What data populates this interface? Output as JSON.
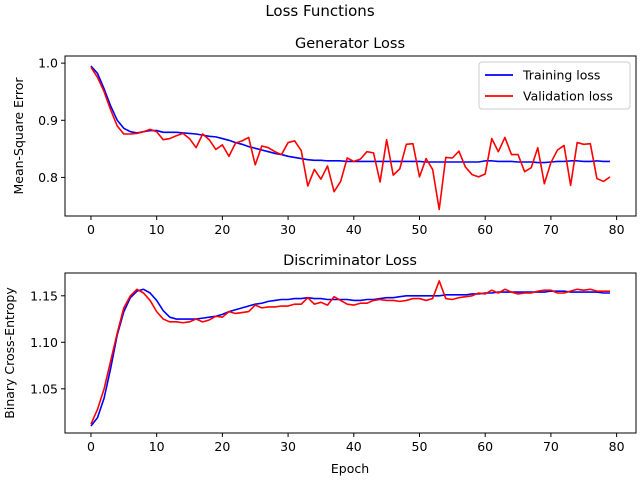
{
  "figure": {
    "suptitle": "Loss Functions"
  },
  "colors": {
    "training": "#0000ff",
    "validation": "#ff0000"
  },
  "chart_data": [
    {
      "type": "line",
      "title": "Generator Loss",
      "xlabel": "",
      "ylabel": "Mean-Square Error",
      "xlim": [
        -3.95,
        82.95
      ],
      "ylim": [
        0.7325,
        1.0125
      ],
      "xticks": [
        0,
        10,
        20,
        30,
        40,
        50,
        60,
        70,
        80
      ],
      "yticks": [
        0.8,
        0.9,
        1.0
      ],
      "ytick_labels": [
        "0.8",
        "0.9",
        "1.0"
      ],
      "legend": "top-right",
      "x": [
        0,
        1,
        2,
        3,
        4,
        5,
        6,
        7,
        8,
        9,
        10,
        11,
        12,
        13,
        14,
        15,
        16,
        17,
        18,
        19,
        20,
        21,
        22,
        23,
        24,
        25,
        26,
        27,
        28,
        29,
        30,
        31,
        32,
        33,
        34,
        35,
        36,
        37,
        38,
        39,
        40,
        41,
        42,
        43,
        44,
        45,
        46,
        47,
        48,
        49,
        50,
        51,
        52,
        53,
        54,
        55,
        56,
        57,
        58,
        59,
        60,
        61,
        62,
        63,
        64,
        65,
        66,
        67,
        68,
        69,
        70,
        71,
        72,
        73,
        74,
        75,
        76,
        77,
        78,
        79
      ],
      "series": [
        {
          "name": "Training loss",
          "color": "#0000ff",
          "values": [
            0.995,
            0.982,
            0.955,
            0.925,
            0.9,
            0.886,
            0.88,
            0.878,
            0.88,
            0.882,
            0.882,
            0.879,
            0.879,
            0.879,
            0.878,
            0.877,
            0.876,
            0.874,
            0.872,
            0.871,
            0.868,
            0.865,
            0.861,
            0.858,
            0.854,
            0.851,
            0.848,
            0.845,
            0.842,
            0.84,
            0.837,
            0.835,
            0.833,
            0.831,
            0.83,
            0.83,
            0.829,
            0.829,
            0.829,
            0.828,
            0.828,
            0.828,
            0.828,
            0.828,
            0.828,
            0.828,
            0.828,
            0.828,
            0.828,
            0.828,
            0.828,
            0.827,
            0.827,
            0.827,
            0.827,
            0.827,
            0.827,
            0.827,
            0.827,
            0.827,
            0.829,
            0.829,
            0.828,
            0.828,
            0.828,
            0.827,
            0.827,
            0.827,
            0.826,
            0.826,
            0.827,
            0.828,
            0.828,
            0.829,
            0.829,
            0.828,
            0.828,
            0.829,
            0.828,
            0.828
          ]
        },
        {
          "name": "Validation loss",
          "color": "#ff0000",
          "values": [
            0.993,
            0.975,
            0.95,
            0.918,
            0.89,
            0.876,
            0.876,
            0.877,
            0.88,
            0.884,
            0.88,
            0.866,
            0.868,
            0.873,
            0.877,
            0.868,
            0.852,
            0.876,
            0.866,
            0.849,
            0.857,
            0.837,
            0.86,
            0.864,
            0.87,
            0.822,
            0.855,
            0.852,
            0.845,
            0.84,
            0.861,
            0.864,
            0.847,
            0.785,
            0.814,
            0.797,
            0.82,
            0.775,
            0.793,
            0.834,
            0.828,
            0.832,
            0.845,
            0.843,
            0.792,
            0.866,
            0.804,
            0.815,
            0.858,
            0.859,
            0.801,
            0.833,
            0.814,
            0.744,
            0.835,
            0.834,
            0.846,
            0.818,
            0.805,
            0.801,
            0.806,
            0.868,
            0.845,
            0.87,
            0.84,
            0.84,
            0.81,
            0.817,
            0.852,
            0.789,
            0.826,
            0.848,
            0.856,
            0.786,
            0.861,
            0.858,
            0.859,
            0.798,
            0.793,
            0.801
          ]
        }
      ]
    },
    {
      "type": "line",
      "title": "Discriminator Loss",
      "xlabel": "Epoch",
      "ylabel": "Binary Cross-Entropy",
      "xlim": [
        -3.95,
        82.95
      ],
      "ylim": [
        1.0025,
        1.1745
      ],
      "xticks": [
        0,
        10,
        20,
        30,
        40,
        50,
        60,
        70,
        80
      ],
      "yticks": [
        1.05,
        1.1,
        1.15
      ],
      "ytick_labels": [
        "1.05",
        "1.10",
        "1.15"
      ],
      "x": [
        0,
        1,
        2,
        3,
        4,
        5,
        6,
        7,
        8,
        9,
        10,
        11,
        12,
        13,
        14,
        15,
        16,
        17,
        18,
        19,
        20,
        21,
        22,
        23,
        24,
        25,
        26,
        27,
        28,
        29,
        30,
        31,
        32,
        33,
        34,
        35,
        36,
        37,
        38,
        39,
        40,
        41,
        42,
        43,
        44,
        45,
        46,
        47,
        48,
        49,
        50,
        51,
        52,
        53,
        54,
        55,
        56,
        57,
        58,
        59,
        60,
        61,
        62,
        63,
        64,
        65,
        66,
        67,
        68,
        69,
        70,
        71,
        72,
        73,
        74,
        75,
        76,
        77,
        78,
        79
      ],
      "series": [
        {
          "name": "Training loss",
          "color": "#0000ff",
          "values": [
            1.01,
            1.019,
            1.04,
            1.072,
            1.108,
            1.133,
            1.148,
            1.155,
            1.157,
            1.153,
            1.145,
            1.134,
            1.127,
            1.125,
            1.125,
            1.125,
            1.125,
            1.126,
            1.127,
            1.128,
            1.13,
            1.133,
            1.135,
            1.137,
            1.139,
            1.141,
            1.142,
            1.144,
            1.145,
            1.146,
            1.146,
            1.147,
            1.147,
            1.148,
            1.147,
            1.147,
            1.146,
            1.146,
            1.146,
            1.146,
            1.145,
            1.145,
            1.146,
            1.146,
            1.147,
            1.148,
            1.148,
            1.149,
            1.15,
            1.15,
            1.15,
            1.15,
            1.15,
            1.15,
            1.151,
            1.151,
            1.151,
            1.151,
            1.152,
            1.152,
            1.153,
            1.153,
            1.154,
            1.154,
            1.154,
            1.154,
            1.154,
            1.154,
            1.154,
            1.154,
            1.155,
            1.155,
            1.155,
            1.154,
            1.154,
            1.154,
            1.154,
            1.154,
            1.153,
            1.153
          ]
        },
        {
          "name": "Validation loss",
          "color": "#ff0000",
          "values": [
            1.012,
            1.028,
            1.05,
            1.08,
            1.11,
            1.137,
            1.15,
            1.157,
            1.153,
            1.145,
            1.133,
            1.125,
            1.122,
            1.122,
            1.121,
            1.122,
            1.125,
            1.122,
            1.124,
            1.128,
            1.127,
            1.133,
            1.131,
            1.132,
            1.133,
            1.14,
            1.137,
            1.138,
            1.138,
            1.139,
            1.139,
            1.141,
            1.141,
            1.148,
            1.141,
            1.143,
            1.14,
            1.149,
            1.145,
            1.141,
            1.14,
            1.142,
            1.142,
            1.145,
            1.146,
            1.145,
            1.145,
            1.144,
            1.145,
            1.147,
            1.147,
            1.145,
            1.147,
            1.166,
            1.147,
            1.146,
            1.148,
            1.149,
            1.15,
            1.153,
            1.152,
            1.156,
            1.153,
            1.157,
            1.154,
            1.152,
            1.153,
            1.153,
            1.155,
            1.156,
            1.156,
            1.153,
            1.153,
            1.155,
            1.157,
            1.156,
            1.157,
            1.155,
            1.155,
            1.155
          ]
        }
      ]
    }
  ]
}
